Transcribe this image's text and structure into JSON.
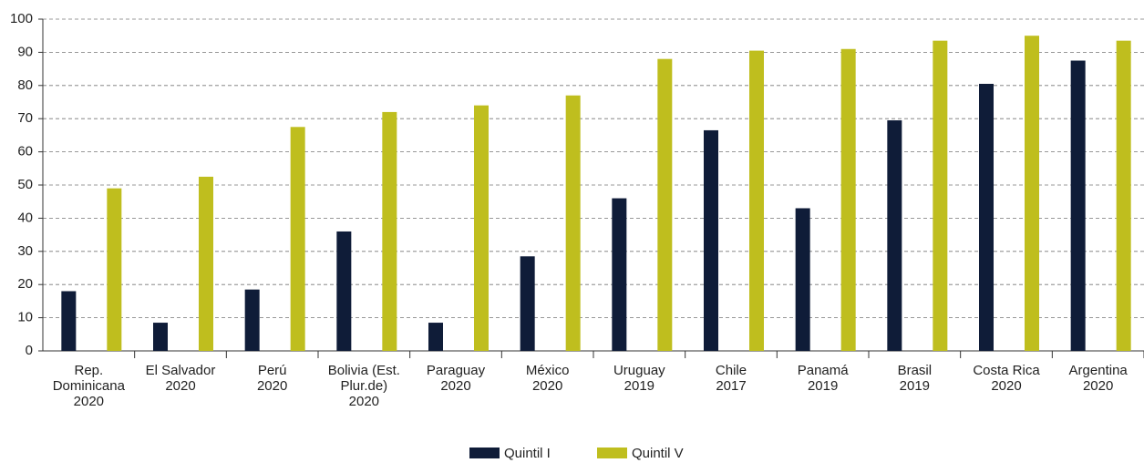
{
  "chart_data": {
    "type": "bar",
    "categories": [
      "Rep.\nDominicana\n2020",
      "El Salvador\n2020",
      "Perú\n2020",
      "Bolivia (Est.\nPlur.de)\n2020",
      "Paraguay\n2020",
      "México\n2020",
      "Uruguay\n2019",
      "Chile\n2017",
      "Panamá\n2019",
      "Brasil\n2019",
      "Costa Rica\n2020",
      "Argentina\n2020"
    ],
    "series": [
      {
        "name": "Quintil I",
        "color": "#0f1c38",
        "values": [
          18,
          8.5,
          18.5,
          36,
          8.5,
          28.5,
          46,
          66.5,
          43,
          69.5,
          80.5,
          87.5
        ]
      },
      {
        "name": "Quintil V",
        "color": "#bfbe1e",
        "values": [
          49,
          52.5,
          67.5,
          72,
          74,
          77,
          88,
          90.5,
          91,
          93.5,
          95,
          93.5
        ]
      }
    ],
    "ylim": [
      0,
      100
    ],
    "yticks": [
      0,
      10,
      20,
      30,
      40,
      50,
      60,
      70,
      80,
      90,
      100
    ],
    "grid": true,
    "legend": "bottom"
  }
}
